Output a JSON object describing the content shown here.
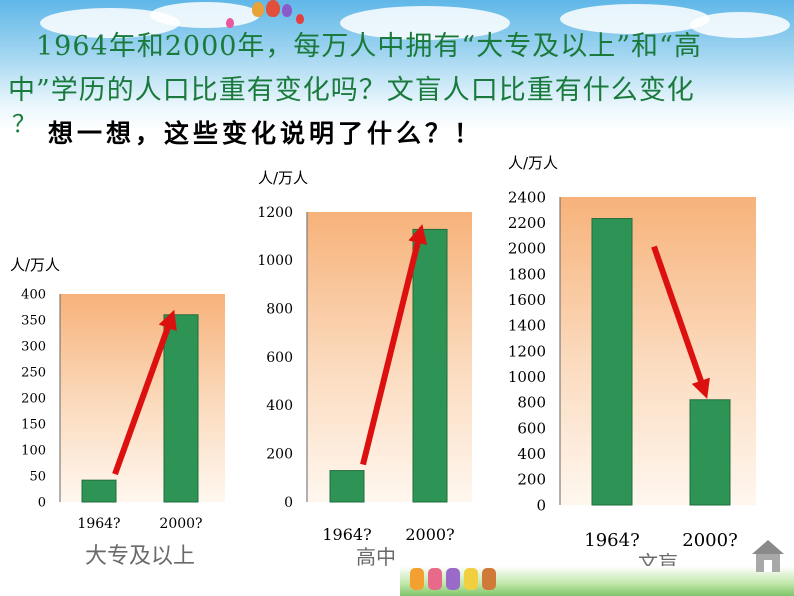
{
  "header": {
    "line1": "1964年和2000年，每万人中拥有“大专及以上”和“高",
    "line2": "中”学历的人口比重有变化吗？文盲人口比重有什么变化",
    "line3": "？",
    "think": "想一想，这些变化说明了什么？！"
  },
  "colors": {
    "bar": "#2e9455",
    "arrow": "#dd1010",
    "heading": "#1a7a3c"
  },
  "chart_data": [
    {
      "type": "bar",
      "title": "大专及以上",
      "ylabel": "人/万人",
      "categories": [
        "1964?",
        "2000?"
      ],
      "values": [
        42,
        360
      ],
      "ylim": [
        0,
        400
      ],
      "yticks": [
        "0",
        "50",
        "100",
        "150",
        "200",
        "250",
        "300",
        "350",
        "400"
      ],
      "trend": "up"
    },
    {
      "type": "bar",
      "title": "高中",
      "ylabel": "人/万人",
      "categories": [
        "1964?",
        "2000?"
      ],
      "values": [
        130,
        1128
      ],
      "ylim": [
        0,
        1200
      ],
      "yticks": [
        "0",
        "200",
        "400",
        "600",
        "800",
        "1000",
        "1200"
      ],
      "trend": "up"
    },
    {
      "type": "bar",
      "title": "文盲",
      "ylabel": "人/万人",
      "categories": [
        "1964?",
        "2000?"
      ],
      "values": [
        2232,
        820
      ],
      "ylim": [
        0,
        2400
      ],
      "yticks": [
        "0",
        "200",
        "400",
        "600",
        "800",
        "1000",
        "1200",
        "1400",
        "1600",
        "1800",
        "2000",
        "2200",
        "2400"
      ],
      "trend": "down"
    }
  ]
}
